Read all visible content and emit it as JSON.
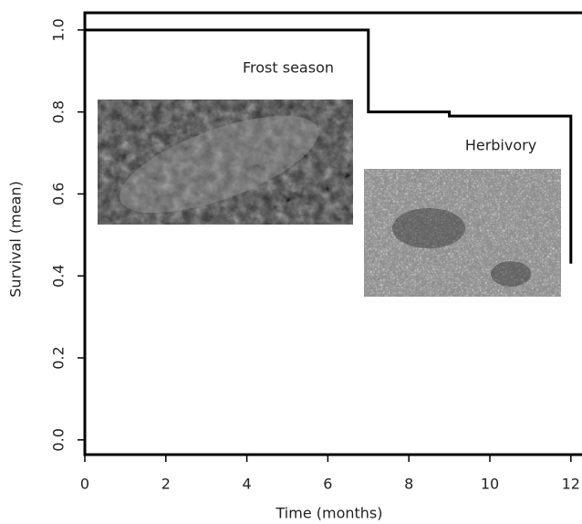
{
  "chart_data": {
    "type": "line",
    "xlabel": "Time (months)",
    "ylabel": "Survival (mean)",
    "annotations": [
      "Frost season",
      "Herbivory"
    ],
    "x": [
      0,
      7,
      7,
      9,
      9,
      12,
      12
    ],
    "series": [
      {
        "color": "#000000",
        "values": [
          1.0,
          1.0,
          0.8,
          0.8,
          0.79,
          0.79,
          0.43
        ]
      }
    ],
    "xlim": [
      0,
      12.4
    ],
    "ylim": [
      -0.036,
      1.042
    ],
    "xticks": [
      0,
      2,
      4,
      6,
      8,
      10,
      12
    ],
    "yticks": [
      {
        "value": 0,
        "label": "0.0"
      },
      {
        "value": 0.2,
        "label": "0.2"
      },
      {
        "value": 0.4,
        "label": "0.4"
      },
      {
        "value": 0.6,
        "label": "0.6"
      },
      {
        "value": 0.8,
        "label": "0.8"
      },
      {
        "value": 1,
        "label": "1.0"
      }
    ]
  }
}
